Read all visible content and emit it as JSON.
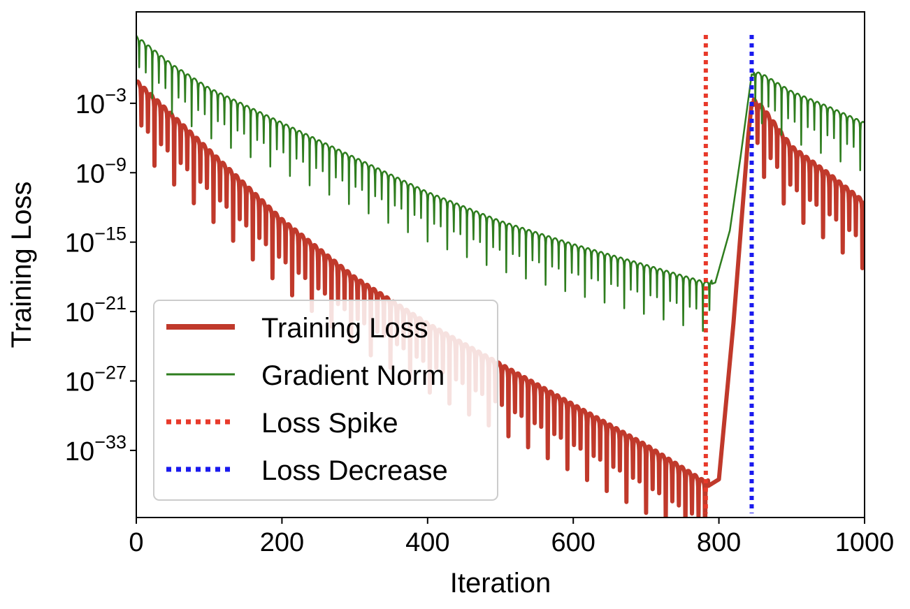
{
  "chart_data": {
    "type": "line",
    "xlabel": "Iteration",
    "ylabel": "Training Loss",
    "xlim": [
      0,
      1000
    ],
    "ylim_log10": [
      -38.8,
      4.9
    ],
    "yscale": "log",
    "grid": false,
    "legend_position": "lower-left",
    "x_ticks": [
      {
        "value": 0,
        "label": "0"
      },
      {
        "value": 200,
        "label": "200"
      },
      {
        "value": 400,
        "label": "400"
      },
      {
        "value": 600,
        "label": "600"
      },
      {
        "value": 800,
        "label": "800"
      },
      {
        "value": 1000,
        "label": "1000"
      }
    ],
    "y_ticks": [
      {
        "exp": -3,
        "base": "10",
        "power": "−3"
      },
      {
        "exp": -9,
        "base": "10",
        "power": "−9"
      },
      {
        "exp": -15,
        "base": "10",
        "power": "−15"
      },
      {
        "exp": -21,
        "base": "10",
        "power": "−21"
      },
      {
        "exp": -27,
        "base": "10",
        "power": "−27"
      },
      {
        "exp": -33,
        "base": "10",
        "power": "−33"
      }
    ],
    "series": [
      {
        "name": "Training Loss",
        "color": "#c0392b",
        "style": "solid-thick",
        "x": [
          0,
          50,
          100,
          200,
          300,
          400,
          500,
          600,
          700,
          782,
          800,
          820,
          840,
          845,
          860,
          900,
          950,
          1000
        ],
        "log10_y": [
          -1.5,
          -4.5,
          -7.5,
          -13.5,
          -18.5,
          -22.5,
          -26.0,
          -29.5,
          -33.0,
          -36.2,
          -35.5,
          -22.0,
          -6.0,
          -3.0,
          -3.8,
          -7.2,
          -9.5,
          -12.0
        ]
      },
      {
        "name": "Gradient Norm",
        "color": "#2e7d1e",
        "style": "solid-thin",
        "x": [
          0,
          50,
          100,
          200,
          300,
          400,
          500,
          600,
          700,
          782,
          795,
          815,
          830,
          845,
          860,
          900,
          950,
          1000
        ],
        "log10_y": [
          2.5,
          0.0,
          -2.0,
          -5.0,
          -8.0,
          -11.0,
          -13.5,
          -15.5,
          -17.3,
          -18.8,
          -18.5,
          -14.0,
          -7.5,
          -0.5,
          -0.8,
          -2.3,
          -3.6,
          -5.0
        ]
      },
      {
        "name": "Loss Spike",
        "color": "#e8392a",
        "style": "dotted-vertical",
        "x_value": 782
      },
      {
        "name": "Loss Decrease",
        "color": "#1a1aee",
        "style": "dotted-vertical",
        "x_value": 845
      }
    ]
  }
}
